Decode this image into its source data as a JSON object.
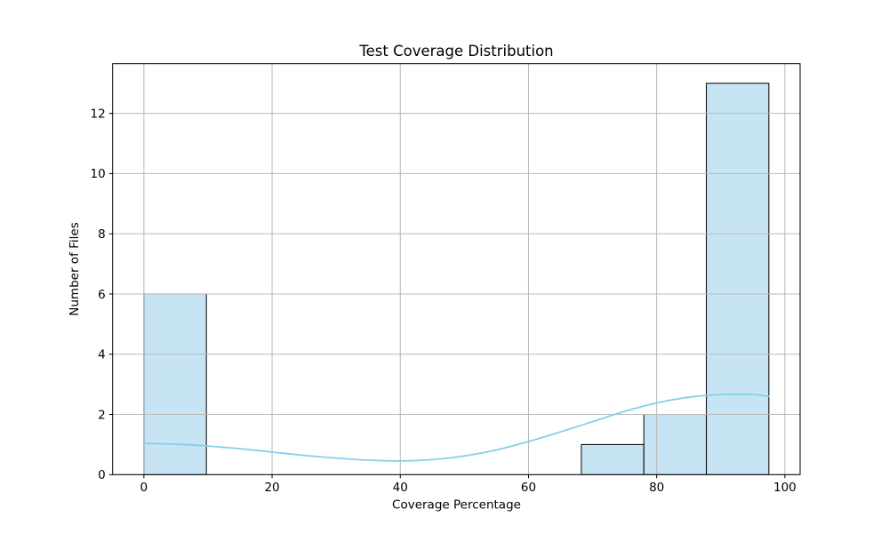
{
  "chart_data": {
    "type": "bar",
    "subtype": "histogram_with_kde",
    "title": "Test Coverage Distribution",
    "xlabel": "Coverage Percentage",
    "ylabel": "Number of Files",
    "bin_edges": [
      0,
      9.75,
      19.5,
      29.25,
      39,
      48.75,
      58.5,
      68.25,
      78,
      87.75,
      97.5
    ],
    "counts": [
      6,
      0,
      0,
      0,
      0,
      0,
      0,
      1,
      2,
      13
    ],
    "kde": {
      "x": [
        0,
        5,
        10,
        15,
        20,
        25,
        30,
        35,
        40,
        45,
        50,
        55,
        60,
        65,
        70,
        75,
        80,
        85,
        90,
        95,
        97.5
      ],
      "y": [
        1.04,
        1.01,
        0.95,
        0.86,
        0.75,
        0.64,
        0.55,
        0.48,
        0.455,
        0.5,
        0.62,
        0.82,
        1.1,
        1.42,
        1.76,
        2.1,
        2.38,
        2.57,
        2.66,
        2.66,
        2.6
      ]
    },
    "xticks": [
      0,
      20,
      40,
      60,
      80,
      100
    ],
    "yticks": [
      0,
      2,
      4,
      6,
      8,
      10,
      12
    ],
    "xlim": [
      -4.875,
      102.375
    ],
    "ylim": [
      0,
      13.65
    ],
    "grid": true,
    "legend": null,
    "colors": {
      "bar_fill": "#c7e4f4",
      "bar_edge": "#000000",
      "kde_line": "#87ceeb",
      "grid": "#b8b8b8",
      "spine": "#000000",
      "text": "#000000",
      "background": "#ffffff"
    }
  }
}
